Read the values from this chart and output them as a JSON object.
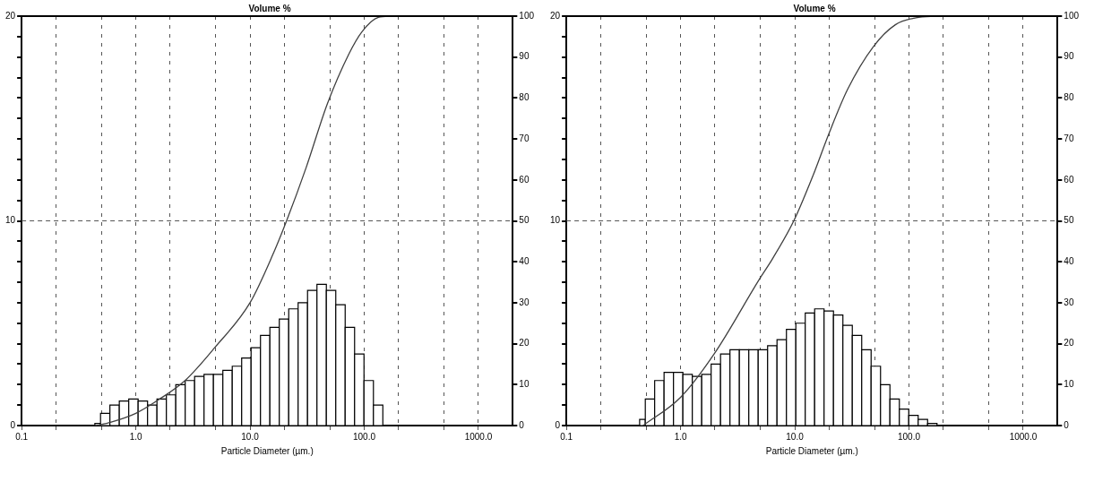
{
  "chart_data": [
    {
      "type": "histogram",
      "title": "Volume %",
      "xlabel": "Particle Diameter (µm.)",
      "log": "x",
      "xlim": [
        0.1,
        2000
      ],
      "xticks": [
        {
          "value": 0.1,
          "label": "0.1"
        },
        {
          "value": 0.2,
          "label": null
        },
        {
          "value": 0.5,
          "label": null
        },
        {
          "value": 1,
          "label": "1.0"
        },
        {
          "value": 2,
          "label": null
        },
        {
          "value": 5,
          "label": null
        },
        {
          "value": 10,
          "label": "10.0"
        },
        {
          "value": 20,
          "label": null
        },
        {
          "value": 50,
          "label": null
        },
        {
          "value": 100,
          "label": "100.0"
        },
        {
          "value": 200,
          "label": null
        },
        {
          "value": 500,
          "label": null
        },
        {
          "value": 1000,
          "label": "1000.0"
        }
      ],
      "ylim": [
        0,
        20
      ],
      "yticks": [
        0,
        {
          "value": 1,
          "label": null
        },
        {
          "value": 2,
          "label": null
        },
        {
          "value": 3,
          "label": null
        },
        {
          "value": 4,
          "label": null
        },
        {
          "value": 5,
          "label": null
        },
        {
          "value": 6,
          "label": null
        },
        {
          "value": 7,
          "label": null
        },
        {
          "value": 8,
          "label": null
        },
        {
          "value": 9,
          "label": null
        },
        10,
        {
          "value": 11,
          "label": null
        },
        {
          "value": 12,
          "label": null
        },
        {
          "value": 13,
          "label": null
        },
        {
          "value": 14,
          "label": null
        },
        {
          "value": 15,
          "label": null
        },
        {
          "value": 16,
          "label": null
        },
        {
          "value": 17,
          "label": null
        },
        {
          "value": 18,
          "label": null
        },
        {
          "value": 19,
          "label": null
        },
        20
      ],
      "y2lim": [
        0,
        100
      ],
      "y2ticks": [
        0,
        10,
        20,
        30,
        40,
        50,
        60,
        70,
        80,
        90,
        100
      ],
      "grid": "x",
      "marker": "none",
      "ref_lines": [
        {
          "axis": "y",
          "value": 10,
          "line_style": "dashed",
          "color": "#555555"
        }
      ],
      "series": [
        {
          "type": "histogram",
          "color": "#000000",
          "bins": [
            0.438,
            0.491,
            0.593,
            0.717,
            0.867,
            1.048,
            1.267,
            1.532,
            1.852,
            2.239,
            2.707,
            3.273,
            3.957,
            4.784,
            5.783,
            6.991,
            8.452,
            10.22,
            12.35,
            14.93,
            18.05,
            21.83,
            26.38,
            31.9,
            38.56,
            46.62,
            56.36,
            68.13,
            82.37,
            99.57,
            120.4,
            145.6
          ],
          "values": [
            0.1,
            0.6,
            1.0,
            1.2,
            1.3,
            1.2,
            1.0,
            1.3,
            1.5,
            2.0,
            2.2,
            2.4,
            2.5,
            2.5,
            2.7,
            2.9,
            3.3,
            3.8,
            4.4,
            4.8,
            5.2,
            5.7,
            6.0,
            6.6,
            6.9,
            6.6,
            5.9,
            4.8,
            3.5,
            2.2,
            1.0
          ]
        },
        {
          "type": "line",
          "axis": "y2",
          "color": "#404040",
          "x": [
            0.45,
            0.6,
            1.0,
            1.6,
            2.7,
            4.9,
            10,
            15.7,
            20.9,
            31,
            47.6,
            73.6,
            95.7,
            133,
            174
          ],
          "values": [
            0,
            0.8,
            3,
            6.4,
            11,
            19,
            30,
            41.5,
            50,
            63,
            78.6,
            90.8,
            96.2,
            99.7,
            100
          ]
        }
      ]
    },
    {
      "type": "histogram",
      "title": "Volume %",
      "xlabel": "Particle Diameter (µm.)",
      "log": "x",
      "xlim": [
        0.1,
        2000
      ],
      "xticks": [
        {
          "value": 0.1,
          "label": "0.1"
        },
        {
          "value": 0.2,
          "label": null
        },
        {
          "value": 0.5,
          "label": null
        },
        {
          "value": 1,
          "label": "1.0"
        },
        {
          "value": 2,
          "label": null
        },
        {
          "value": 5,
          "label": null
        },
        {
          "value": 10,
          "label": "10.0"
        },
        {
          "value": 20,
          "label": null
        },
        {
          "value": 50,
          "label": null
        },
        {
          "value": 100,
          "label": "100.0"
        },
        {
          "value": 200,
          "label": null
        },
        {
          "value": 500,
          "label": null
        },
        {
          "value": 1000,
          "label": "1000.0"
        }
      ],
      "ylim": [
        0,
        20
      ],
      "yticks": [
        0,
        {
          "value": 1,
          "label": null
        },
        {
          "value": 2,
          "label": null
        },
        {
          "value": 3,
          "label": null
        },
        {
          "value": 4,
          "label": null
        },
        {
          "value": 5,
          "label": null
        },
        {
          "value": 6,
          "label": null
        },
        {
          "value": 7,
          "label": null
        },
        {
          "value": 8,
          "label": null
        },
        {
          "value": 9,
          "label": null
        },
        10,
        {
          "value": 11,
          "label": null
        },
        {
          "value": 12,
          "label": null
        },
        {
          "value": 13,
          "label": null
        },
        {
          "value": 14,
          "label": null
        },
        {
          "value": 15,
          "label": null
        },
        {
          "value": 16,
          "label": null
        },
        {
          "value": 17,
          "label": null
        },
        {
          "value": 18,
          "label": null
        },
        {
          "value": 19,
          "label": null
        },
        20
      ],
      "y2lim": [
        0,
        100
      ],
      "y2ticks": [
        0,
        10,
        20,
        30,
        40,
        50,
        60,
        70,
        80,
        90,
        100
      ],
      "grid": "x",
      "marker": "none",
      "ref_lines": [
        {
          "axis": "y",
          "value": 10,
          "line_style": "dashed",
          "color": "#555555"
        }
      ],
      "series": [
        {
          "type": "histogram",
          "color": "#000000",
          "bins": [
            0.438,
            0.491,
            0.593,
            0.717,
            0.867,
            1.048,
            1.267,
            1.532,
            1.852,
            2.239,
            2.707,
            3.273,
            3.957,
            4.784,
            5.783,
            6.991,
            8.452,
            10.22,
            12.35,
            14.93,
            18.05,
            21.83,
            26.38,
            31.9,
            38.56,
            46.62,
            56.36,
            68.13,
            82.37,
            99.57,
            120.4,
            145.6,
            176.0
          ],
          "values": [
            0.3,
            1.3,
            2.2,
            2.6,
            2.6,
            2.5,
            2.4,
            2.5,
            3.0,
            3.5,
            3.7,
            3.7,
            3.7,
            3.7,
            3.9,
            4.2,
            4.7,
            5.0,
            5.5,
            5.7,
            5.6,
            5.4,
            4.9,
            4.4,
            3.7,
            2.9,
            2.0,
            1.3,
            0.8,
            0.5,
            0.3,
            0.1
          ]
        },
        {
          "type": "line",
          "axis": "y2",
          "color": "#404040",
          "x": [
            0.47,
            1.0,
            1.99,
            4.86,
            6.4,
            9.8,
            14.6,
            19.9,
            29,
            48.6,
            76,
            115,
            180
          ],
          "values": [
            0,
            6.9,
            17.7,
            35.6,
            40.8,
            50,
            61.4,
            71.3,
            82.1,
            92.5,
            97.9,
            99.6,
            100
          ]
        }
      ]
    }
  ]
}
